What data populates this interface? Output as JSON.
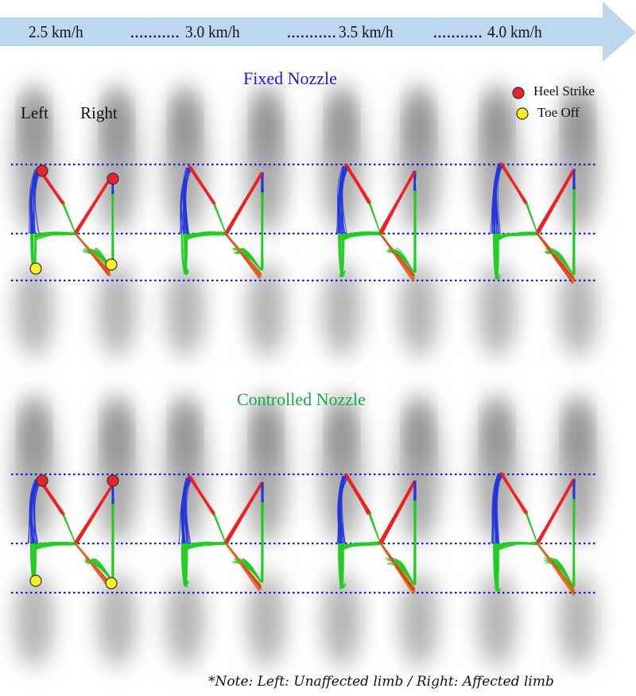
{
  "speed_arrow": {
    "color": "#bdd7ee",
    "speeds": [
      "2.5 km/h",
      "3.0 km/h",
      "3.5 km/h",
      "4.0 km/h"
    ],
    "separator": "..........."
  },
  "panels": [
    {
      "title": "Fixed Nozzle",
      "title_color": "#1a1adc"
    },
    {
      "title": "Controlled Nozzle",
      "title_color": "#1aa84a"
    }
  ],
  "foot_labels": {
    "left": "Left",
    "right": "Right"
  },
  "legend": [
    {
      "label": "Heel Strike",
      "color": "#e8232a"
    },
    {
      "label": "Toe Off",
      "color": "#f5f01e"
    }
  ],
  "trajectory_colors": {
    "blue": "#2233dd",
    "green": "#22cc22",
    "red": "#ee2222",
    "orange": "#d08a20"
  },
  "reference_line_color": "#1a1acc",
  "note": "*Note: Left: Unaffected limb / Right: Affected limb"
}
